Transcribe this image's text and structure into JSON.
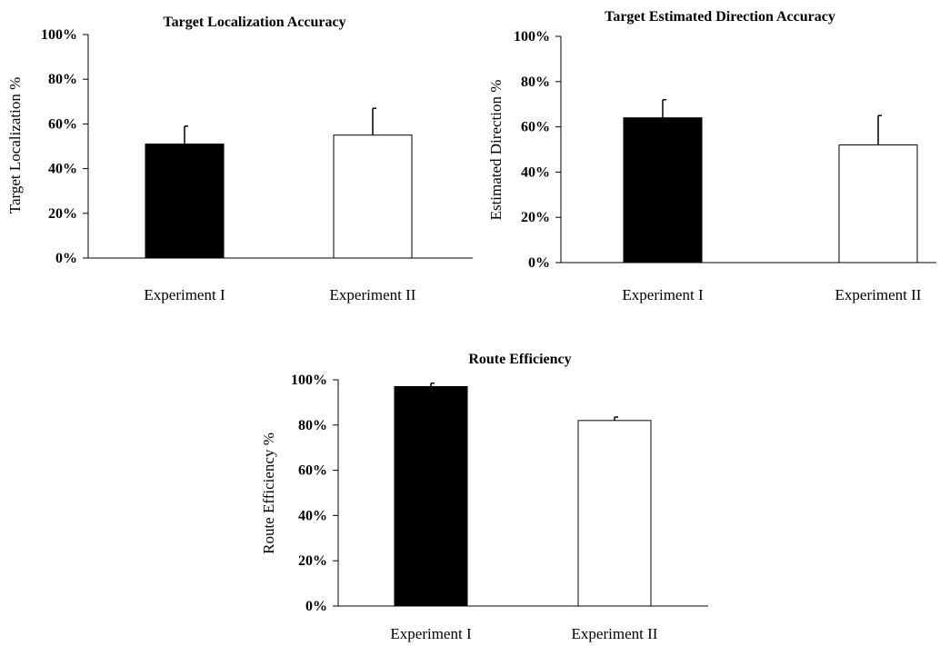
{
  "chart_data": [
    {
      "type": "bar",
      "title": "Target Localization Accuracy",
      "ylabel": "Target Localization %",
      "xlabel": "",
      "categories": [
        "Experiment I",
        "Experiment II"
      ],
      "values": [
        51,
        55
      ],
      "errors": [
        8,
        12
      ],
      "ylim": [
        0,
        100
      ],
      "yticks": [
        "0%",
        "20%",
        "40%",
        "60%",
        "80%",
        "100%"
      ],
      "bar_colors": [
        "#000000",
        "#ffffff"
      ]
    },
    {
      "type": "bar",
      "title": "Target Estimated Direction Accuracy",
      "ylabel": "Estimated Direction %",
      "xlabel": "",
      "categories": [
        "Experiment I",
        "Experiment II"
      ],
      "values": [
        64,
        52
      ],
      "errors": [
        8,
        13
      ],
      "ylim": [
        0,
        100
      ],
      "yticks": [
        "0%",
        "20%",
        "40%",
        "60%",
        "80%",
        "100%"
      ],
      "bar_colors": [
        "#000000",
        "#ffffff"
      ]
    },
    {
      "type": "bar",
      "title": "Route Efficiency",
      "ylabel": "Route Efficiency %",
      "xlabel": "",
      "categories": [
        "Experiment I",
        "Experiment II"
      ],
      "values": [
        97,
        82
      ],
      "errors": [
        1.5,
        1.5
      ],
      "ylim": [
        0,
        100
      ],
      "yticks": [
        "0%",
        "20%",
        "40%",
        "60%",
        "80%",
        "100%"
      ],
      "bar_colors": [
        "#000000",
        "#ffffff"
      ]
    }
  ]
}
